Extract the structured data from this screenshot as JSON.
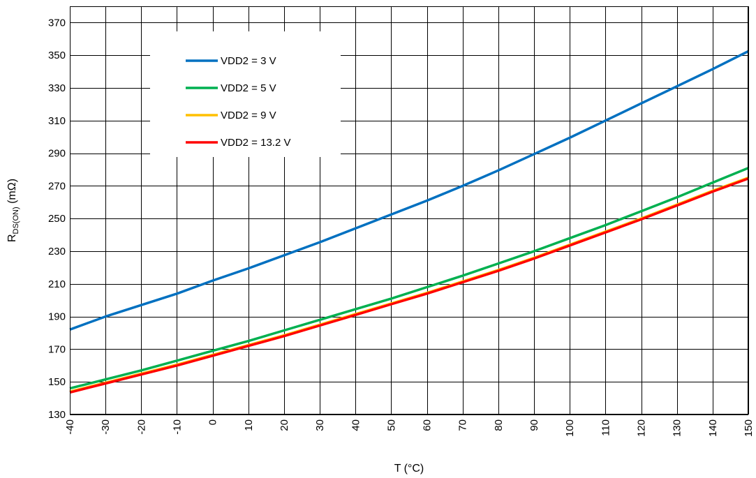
{
  "chart_data": {
    "type": "line",
    "xlabel": "T (°C)",
    "ylabel_main": "R",
    "ylabel_sub": "DS(ON)",
    "ylabel_unit": " (mΩ)",
    "xlim": [
      -40,
      150
    ],
    "ylim": [
      130,
      380
    ],
    "x_ticks": [
      -40,
      -30,
      -20,
      -10,
      0,
      10,
      20,
      30,
      40,
      50,
      60,
      70,
      80,
      90,
      100,
      110,
      120,
      130,
      140,
      150
    ],
    "y_ticks": [
      130,
      150,
      170,
      190,
      210,
      230,
      250,
      270,
      290,
      310,
      330,
      350,
      370
    ],
    "grid": true,
    "legend_position": "top-left",
    "x": [
      -40,
      -30,
      -20,
      -10,
      0,
      10,
      20,
      30,
      40,
      50,
      60,
      70,
      80,
      90,
      100,
      110,
      120,
      130,
      140,
      150
    ],
    "series": [
      {
        "name": "VDD2 = 3 V",
        "color": "#0070C0",
        "values": [
          182,
          190,
          197,
          204,
          212,
          219.5,
          227.5,
          235.5,
          244,
          252.5,
          261,
          270,
          279.5,
          289.5,
          299.5,
          310,
          320.5,
          331,
          341.5,
          352.5
        ]
      },
      {
        "name": "VDD2 = 5 V",
        "color": "#00B050",
        "values": [
          146,
          151.5,
          157,
          163,
          169,
          175,
          181.5,
          188,
          194.5,
          201,
          208,
          215,
          222.5,
          230,
          238,
          246,
          254.5,
          263,
          272,
          281
        ]
      },
      {
        "name": "VDD2 = 9 V",
        "color": "#FFC000",
        "values": [
          144,
          149.5,
          155,
          160.5,
          166.5,
          172.5,
          178.5,
          185,
          191.5,
          198,
          204.5,
          211.5,
          218.5,
          226,
          234,
          242,
          250,
          258.5,
          267,
          275
        ]
      },
      {
        "name": "VDD2 = 13.2 V",
        "color": "#FF0000",
        "values": [
          143.5,
          149,
          154.5,
          160,
          166,
          172,
          178,
          184.5,
          191,
          197.5,
          204,
          211,
          218,
          225.5,
          233.5,
          241.5,
          249.5,
          258,
          266.5,
          274.5
        ]
      }
    ]
  }
}
